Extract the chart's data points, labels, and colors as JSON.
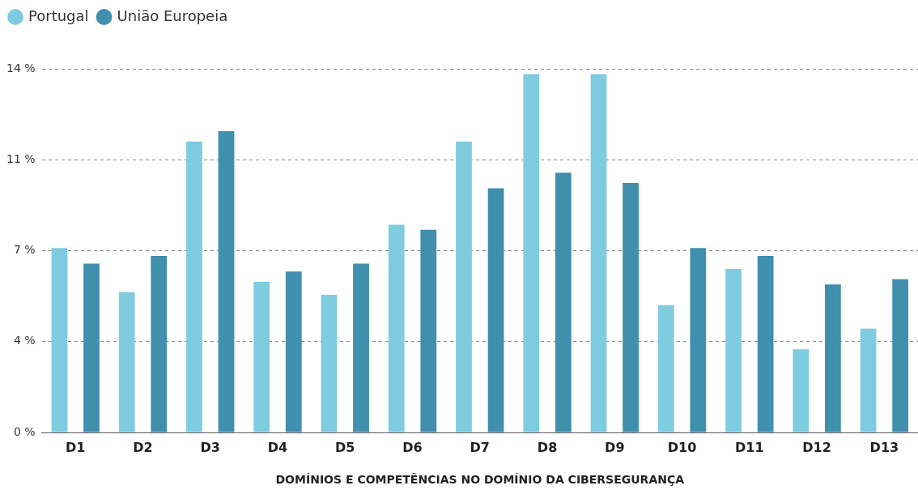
{
  "chart_data": {
    "type": "bar",
    "xlabel": "DOMÍNIOS E COMPETÊNCIAS NO DOMÍNIO DA CIBERSEGURANÇA",
    "categories": [
      "D1",
      "D2",
      "D3",
      "D4",
      "D5",
      "D6",
      "D7",
      "D8",
      "D9",
      "D10",
      "D11",
      "D12",
      "D13"
    ],
    "series": [
      {
        "name": "Portugal",
        "color": "#7fcce0",
        "values": [
          7.1,
          5.4,
          11.2,
          5.8,
          5.3,
          8.0,
          11.2,
          13.8,
          13.8,
          4.9,
          6.3,
          3.2,
          4.0
        ]
      },
      {
        "name": "União Europeia",
        "color": "#3f8fad",
        "values": [
          6.5,
          6.8,
          11.6,
          6.2,
          6.5,
          7.8,
          9.4,
          10.0,
          9.6,
          7.1,
          6.8,
          5.7,
          5.9
        ]
      }
    ],
    "ylim": [
      0,
      14
    ],
    "yticks": [
      {
        "value": 0,
        "label": "0 %"
      },
      {
        "value": 3.5,
        "label": "4 %"
      },
      {
        "value": 7,
        "label": "7 %"
      },
      {
        "value": 10.5,
        "label": "11 %"
      },
      {
        "value": 14,
        "label": "14 %"
      }
    ],
    "grid": "y",
    "legend": "top left"
  }
}
